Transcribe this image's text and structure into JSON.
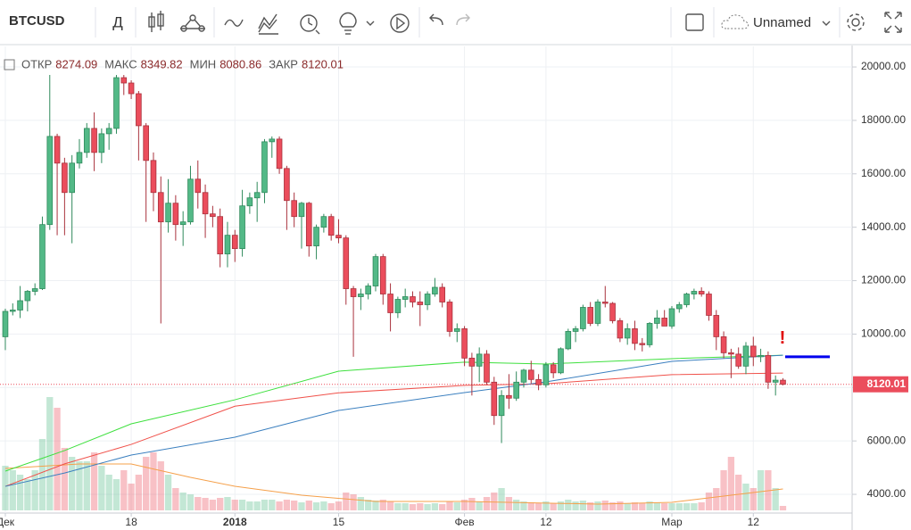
{
  "toolbar": {
    "symbol": "BTCUSD",
    "interval": "Д",
    "layout_name": "Unnamed"
  },
  "chart_data": {
    "type": "candlestick",
    "legend_labels": [
      "ОТКР",
      "МАКС",
      "МИН",
      "ЗАКР"
    ],
    "up_color": "#53b987",
    "down_color": "#eb4d5c",
    "xlim": [
      -0.72,
      114.34
    ],
    "xticks": [
      {
        "value": 0,
        "label": "Дек"
      },
      {
        "value": 17,
        "label": "18"
      },
      {
        "value": 31,
        "label": "2018"
      },
      {
        "value": 45,
        "label": "15"
      },
      {
        "value": 62,
        "label": "Фев"
      },
      {
        "value": 73,
        "label": "12"
      },
      {
        "value": 90,
        "label": "Мар"
      },
      {
        "value": 101,
        "label": "12"
      }
    ],
    "ylim": [
      3400,
      20770
    ],
    "yticks": [
      {
        "value": 4000,
        "label": "4000.00"
      },
      {
        "value": 6000,
        "label": "6000.00"
      },
      {
        "value": 8000,
        "label": "8000.00"
      },
      {
        "value": 10000,
        "label": "10000.00"
      },
      {
        "value": 12000,
        "label": "12000.00"
      },
      {
        "value": 14000,
        "label": "14000.00"
      },
      {
        "value": 16000,
        "label": "16000.00"
      },
      {
        "value": 18000,
        "label": "18000.00"
      },
      {
        "value": 20000,
        "label": "20000.00"
      }
    ],
    "grid": true,
    "ohlc": {
      "open": [
        9900,
        10850,
        10900,
        11250,
        11600,
        11700,
        14100,
        17400,
        16400,
        15300,
        16400,
        16800,
        17700,
        16800,
        17500,
        17700,
        19600,
        19400,
        19000,
        17800,
        16500,
        15300,
        14200,
        14900,
        14100,
        14200,
        15800,
        15300,
        14500,
        14400,
        13000,
        13700,
        13200,
        14800,
        15100,
        15300,
        17200,
        17300,
        16200,
        15000,
        14400,
        14900,
        13300,
        14000,
        14400,
        13700,
        13600,
        11700,
        11400,
        11500,
        11800,
        12900,
        11500,
        10800,
        11300,
        11400,
        11200,
        11100,
        11500,
        11750,
        11200,
        10100,
        10200,
        9100,
        8800,
        9250,
        8200,
        6950,
        7700,
        7600,
        8200,
        8650,
        8300,
        8100,
        8850,
        8550,
        9450,
        10100,
        10200,
        11000,
        10400,
        11200,
        11150,
        10500,
        9850,
        10200,
        9650,
        9600,
        10400,
        10600,
        10300,
        10950,
        11100,
        11500,
        11600,
        11500,
        10700,
        9900,
        9300,
        9250,
        8800,
        9550,
        9150,
        9200,
        8200,
        8274.09
      ],
      "high": [
        10950,
        11150,
        11800,
        11650,
        11900,
        14400,
        19700,
        17500,
        16600,
        16700,
        17300,
        17900,
        18300,
        17700,
        17900,
        19700,
        19700,
        19500,
        19100,
        17900,
        16800,
        15900,
        15800,
        15200,
        14600,
        16300,
        16500,
        15600,
        14800,
        14700,
        14200,
        13900,
        15400,
        15300,
        15700,
        17300,
        17400,
        17400,
        16300,
        15300,
        14950,
        14950,
        14100,
        14500,
        14500,
        14300,
        13700,
        11800,
        11700,
        11900,
        13000,
        13000,
        11900,
        11400,
        11700,
        11600,
        11600,
        11600,
        12100,
        11900,
        11300,
        10400,
        10300,
        9300,
        9500,
        9400,
        8400,
        7900,
        8500,
        8600,
        8700,
        9000,
        8500,
        8950,
        8950,
        9500,
        10200,
        10300,
        11100,
        11200,
        11300,
        11800,
        11200,
        10600,
        10400,
        10500,
        9850,
        10450,
        10900,
        10900,
        11050,
        11200,
        11550,
        11700,
        11750,
        11600,
        10900,
        10100,
        9450,
        9500,
        9700,
        9900,
        9450,
        9350,
        8450,
        8349.82
      ],
      "low": [
        9400,
        10700,
        10600,
        10850,
        11450,
        11650,
        13900,
        13700,
        13700,
        13400,
        16200,
        16600,
        16100,
        16400,
        16900,
        17500,
        18950,
        18800,
        16500,
        14200,
        14600,
        10400,
        13800,
        13500,
        13300,
        14100,
        14700,
        13600,
        14000,
        12500,
        12500,
        12700,
        12900,
        14500,
        14200,
        14900,
        16600,
        16000,
        13900,
        14000,
        13200,
        12900,
        12800,
        13800,
        13500,
        13400,
        11100,
        9150,
        10900,
        11300,
        11600,
        11100,
        10100,
        10600,
        11000,
        11000,
        10300,
        10900,
        11400,
        11000,
        9900,
        9700,
        8800,
        7700,
        8200,
        8100,
        6600,
        5920,
        7200,
        7500,
        8000,
        8150,
        7900,
        8000,
        8350,
        8500,
        9400,
        9700,
        10100,
        10300,
        10300,
        11000,
        10400,
        9700,
        9600,
        9400,
        9350,
        9500,
        10200,
        10300,
        10200,
        10800,
        11000,
        11300,
        11400,
        10500,
        9400,
        9100,
        8350,
        8700,
        8500,
        8800,
        8950,
        7950,
        7700,
        8080.86
      ],
      "close": [
        10850,
        10900,
        11250,
        11600,
        11700,
        14100,
        17400,
        16400,
        15300,
        16400,
        16800,
        17700,
        16800,
        17500,
        17700,
        19600,
        19400,
        19000,
        17800,
        16500,
        15300,
        14200,
        14900,
        14100,
        14200,
        15800,
        15300,
        14500,
        14400,
        13000,
        13700,
        13200,
        14800,
        15100,
        15300,
        17200,
        17300,
        16200,
        15000,
        14400,
        14900,
        13300,
        14000,
        14400,
        13700,
        13600,
        11700,
        11400,
        11500,
        11800,
        12900,
        11500,
        10800,
        11300,
        11400,
        11200,
        11100,
        11500,
        11750,
        11200,
        10100,
        10200,
        9100,
        8800,
        9250,
        8200,
        6950,
        7700,
        7600,
        8200,
        8650,
        8300,
        8100,
        8850,
        8550,
        9450,
        10100,
        10200,
        11000,
        10400,
        11200,
        11150,
        10500,
        9850,
        10200,
        9650,
        9600,
        10400,
        10600,
        10300,
        10950,
        11100,
        11500,
        11600,
        11500,
        10700,
        9900,
        9300,
        9250,
        8800,
        9550,
        9150,
        9200,
        8200,
        8274.09,
        8120.01
      ]
    },
    "volume": [
      50,
      45,
      40,
      35,
      45,
      80,
      127,
      115,
      70,
      60,
      55,
      55,
      65,
      50,
      40,
      35,
      45,
      30,
      40,
      60,
      65,
      55,
      40,
      25,
      20,
      18,
      15,
      14,
      12,
      14,
      15,
      12,
      12,
      10,
      10,
      12,
      12,
      10,
      12,
      11,
      9,
      11,
      9,
      10,
      8,
      10,
      20,
      18,
      15,
      12,
      11,
      12,
      10,
      8,
      8,
      7,
      8,
      7,
      8,
      7,
      10,
      9,
      12,
      14,
      10,
      15,
      20,
      25,
      15,
      12,
      10,
      9,
      8,
      10,
      8,
      10,
      12,
      10,
      11,
      9,
      10,
      11,
      9,
      10,
      8,
      9,
      8,
      10,
      9,
      8,
      8,
      8,
      8,
      8,
      9,
      20,
      25,
      45,
      60,
      40,
      30,
      25,
      45,
      45,
      25,
      5
    ],
    "volume_ylim": [
      0,
      520
    ],
    "moving_averages": [
      {
        "color": "#3ee03e",
        "x": [
          0,
          8,
          17,
          31,
          45,
          62,
          73,
          90,
          105
        ],
        "values": [
          4870,
          5640,
          6640,
          7540,
          8610,
          8950,
          8880,
          9080,
          9210
        ]
      },
      {
        "color": "#f0514a",
        "x": [
          0,
          8,
          17,
          31,
          45,
          62,
          73,
          90,
          105
        ],
        "values": [
          4300,
          5140,
          5870,
          7300,
          7800,
          8080,
          8140,
          8480,
          8540
        ]
      },
      {
        "color": "#3a7fbf",
        "x": [
          0,
          8,
          17,
          31,
          45,
          62,
          73,
          90,
          105
        ],
        "values": [
          4300,
          4800,
          5470,
          6140,
          7140,
          7810,
          8210,
          8980,
          9210
        ]
      }
    ],
    "volume_ma": {
      "color": "#f5a04a",
      "x": [
        0,
        10,
        17,
        25,
        31,
        40,
        50,
        62,
        80,
        90,
        98,
        105
      ],
      "values": [
        47,
        52,
        52,
        37,
        27,
        17,
        10,
        10,
        7,
        9,
        17,
        24
      ]
    },
    "alert_level": 9150,
    "alert_text": "!",
    "alert_color": "#0000ee"
  }
}
